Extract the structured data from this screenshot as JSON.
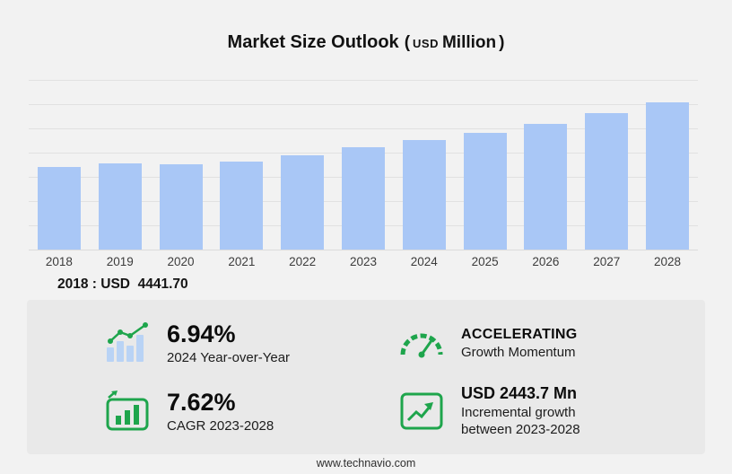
{
  "title": {
    "main": "Market Size Outlook",
    "open_paren": "(",
    "currency": "USD",
    "unit": "Million",
    "close_paren": ")"
  },
  "chart_data": {
    "type": "bar",
    "title": "Market Size Outlook (USD Million)",
    "xlabel": "",
    "ylabel": "",
    "unit": "USD Million",
    "categories": [
      "2018",
      "2019",
      "2020",
      "2021",
      "2022",
      "2023",
      "2024",
      "2025",
      "2026",
      "2027",
      "2028"
    ],
    "values": [
      4441.7,
      4630,
      4580,
      4770,
      5090,
      5508,
      5890,
      6320,
      6800,
      7350,
      7952
    ],
    "ylim": [
      0,
      9300
    ],
    "grid": true,
    "legend": false,
    "bar_color": "#a9c7f6"
  },
  "base_year_note": "2018 : USD  4441.70",
  "stats": [
    {
      "id": "yoy",
      "icon": "trend-bars-icon",
      "value": "6.94%",
      "label": "2024 Year-over-Year"
    },
    {
      "id": "momentum",
      "icon": "gauge-icon",
      "value": "ACCELERATING",
      "label": "Growth Momentum"
    },
    {
      "id": "cagr",
      "icon": "chart-box-icon",
      "value": "7.62%",
      "label": "CAGR 2023-2028"
    },
    {
      "id": "incremental",
      "icon": "growth-arrow-box-icon",
      "value": "USD 2443.7 Mn",
      "label": "Incremental growth between 2023-2028"
    }
  ],
  "footer": {
    "url": "www.technavio.com"
  },
  "colors": {
    "accent_green": "#1ea54c",
    "bar_blue": "#a9c7f6",
    "icon_bar_blue": "#b9d3f5",
    "background": "#f2f2f2",
    "panel_background": "#e9e9e9"
  }
}
